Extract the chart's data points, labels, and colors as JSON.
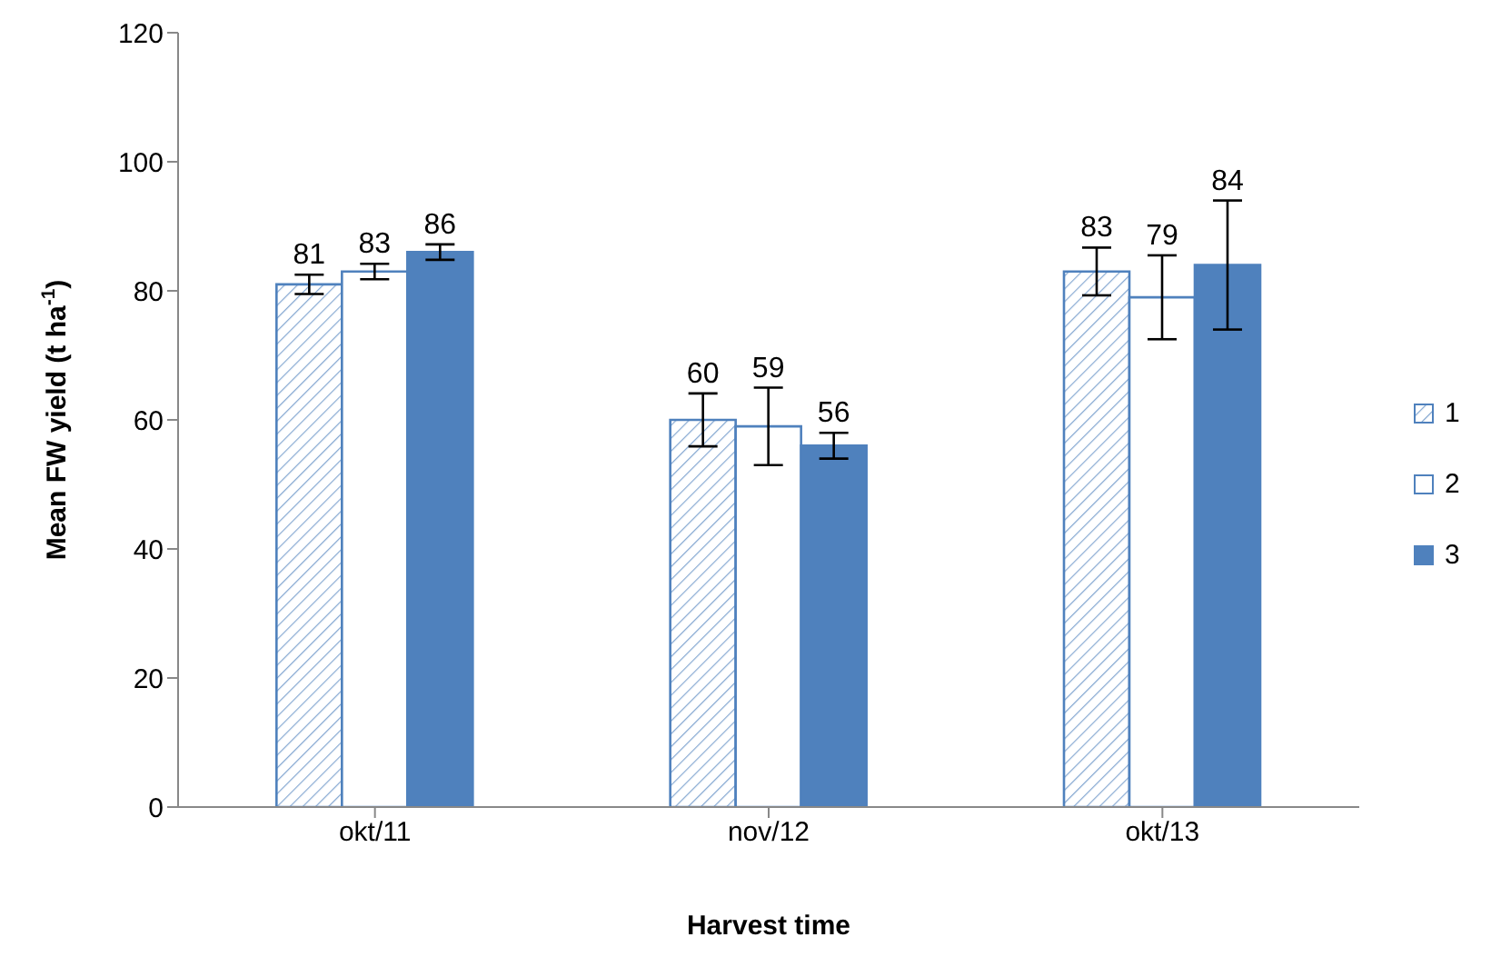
{
  "chart_data": {
    "type": "bar",
    "xlabel": "Harvest time",
    "ylabel": "Mean FW yield (t ha$^{-1}$)",
    "categories": [
      "okt/11",
      "nov/12",
      "okt/13"
    ],
    "series": [
      {
        "name": "1",
        "color": "#4f81bd",
        "values": [
          81,
          60,
          83
        ],
        "errors": [
          1.5,
          4.1,
          3.7
        ]
      },
      {
        "name": "2",
        "color": "#ffffff",
        "values": [
          83,
          59,
          79
        ],
        "errors": [
          1.2,
          6,
          6.5
        ]
      },
      {
        "name": "3",
        "color": "#4f81bd",
        "values": [
          86,
          56,
          84
        ],
        "errors": [
          1.2,
          2,
          10
        ]
      }
    ],
    "ylim": [
      0,
      120
    ],
    "yticks": [
      0,
      20,
      40,
      60,
      80,
      100,
      120
    ],
    "legend": "right",
    "data_labels": true
  }
}
